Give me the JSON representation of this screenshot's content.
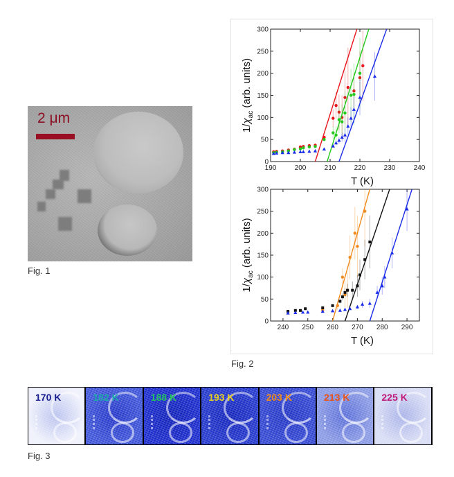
{
  "fig1": {
    "caption": "Fig. 1",
    "scale_label": "2 μm",
    "scale_color": "#9b0f24"
  },
  "fig2": {
    "caption": "Fig. 2",
    "chart_data": [
      {
        "type": "scatter",
        "xlabel": "T (K)",
        "ylabel_main": "1/",
        "ylabel_chi": "χ",
        "ylabel_sub": "ac",
        "ylabel_rest": " (arb. units)",
        "xlim": [
          190,
          240
        ],
        "ylim": [
          0,
          300
        ],
        "xticks": [
          190,
          200,
          210,
          220,
          230,
          240
        ],
        "yticks": [
          0,
          50,
          100,
          150,
          200,
          250,
          300
        ],
        "series": [
          {
            "color": "#e8141c",
            "marker": "circle",
            "points": [
              [
                191,
                22
              ],
              [
                192,
                23
              ],
              [
                194,
                24
              ],
              [
                196,
                26
              ],
              [
                198,
                28
              ],
              [
                200,
                33
              ],
              [
                201,
                34
              ],
              [
                203,
                36
              ],
              [
                205,
                37
              ],
              [
                208,
                55
              ],
              [
                211,
                98
              ],
              [
                212,
                127
              ],
              [
                213,
                112
              ],
              [
                214,
                100
              ],
              [
                215,
                145
              ],
              [
                216,
                168
              ],
              [
                218,
                160
              ],
              [
                220,
                190
              ],
              [
                221,
                217
              ]
            ],
            "errors": [
              0,
              0,
              0,
              0,
              0,
              0,
              0,
              0,
              0,
              0,
              20,
              30,
              40,
              50,
              60,
              90,
              40,
              60,
              80
            ],
            "fit": [
              [
                205,
                0
              ],
              [
                219,
                300
              ]
            ]
          },
          {
            "color": "#22c91a",
            "marker": "circle",
            "points": [
              [
                191,
                20
              ],
              [
                192,
                21
              ],
              [
                194,
                22
              ],
              [
                196,
                24
              ],
              [
                198,
                27
              ],
              [
                200,
                29
              ],
              [
                201,
                31
              ],
              [
                203,
                33
              ],
              [
                205,
                34
              ],
              [
                208,
                50
              ],
              [
                211,
                65
              ],
              [
                212,
                60
              ],
              [
                213,
                95
              ],
              [
                214,
                90
              ],
              [
                215,
                110
              ],
              [
                217,
                150
              ],
              [
                218,
                152
              ],
              [
                220,
                200
              ]
            ],
            "errors": [
              0,
              0,
              0,
              0,
              0,
              0,
              0,
              0,
              0,
              0,
              15,
              20,
              30,
              40,
              50,
              60,
              70,
              80
            ],
            "fit": [
              [
                209,
                0
              ],
              [
                223,
                300
              ]
            ]
          },
          {
            "color": "#1a2ce8",
            "marker": "triangle",
            "points": [
              [
                191,
                18
              ],
              [
                192,
                19
              ],
              [
                194,
                20
              ],
              [
                196,
                20
              ],
              [
                198,
                21
              ],
              [
                200,
                22
              ],
              [
                201,
                22
              ],
              [
                203,
                23
              ],
              [
                205,
                24
              ],
              [
                208,
                28
              ],
              [
                211,
                35
              ],
              [
                212,
                42
              ],
              [
                213,
                48
              ],
              [
                214,
                55
              ],
              [
                215,
                60
              ],
              [
                216,
                80
              ],
              [
                217,
                98
              ],
              [
                218,
                118
              ],
              [
                220,
                145
              ],
              [
                225,
                193
              ]
            ],
            "errors": [
              0,
              0,
              0,
              0,
              0,
              0,
              0,
              0,
              0,
              0,
              0,
              5,
              8,
              10,
              15,
              20,
              25,
              30,
              40,
              55
            ],
            "fit": [
              [
                213,
                0
              ],
              [
                229,
                300
              ]
            ]
          }
        ]
      },
      {
        "type": "scatter",
        "xlabel": "T (K)",
        "ylabel_main": "1/",
        "ylabel_chi": "χ",
        "ylabel_sub": "ac",
        "ylabel_rest": " (arb. units)",
        "xlim": [
          235,
          295
        ],
        "ylim": [
          0,
          300
        ],
        "xticks": [
          240,
          250,
          260,
          270,
          280,
          290
        ],
        "yticks": [
          0,
          50,
          100,
          150,
          200,
          250,
          300
        ],
        "series": [
          {
            "color": "#f28a1b",
            "marker": "circle",
            "points": [
              [
                256,
                25
              ],
              [
                262,
                35
              ],
              [
                264,
                100
              ],
              [
                265,
                60
              ],
              [
                266,
                70
              ],
              [
                267,
                145
              ],
              [
                269,
                200
              ],
              [
                270,
                170
              ],
              [
                273,
                250
              ]
            ],
            "errors": [
              0,
              10,
              20,
              30,
              40,
              50,
              60,
              70,
              80
            ],
            "fit": [
              [
                260,
                0
              ],
              [
                275,
                300
              ]
            ]
          },
          {
            "color": "#111111",
            "marker": "square",
            "points": [
              [
                242,
                22
              ],
              [
                245,
                24
              ],
              [
                247,
                24
              ],
              [
                249,
                28
              ],
              [
                256,
                30
              ],
              [
                260,
                35
              ],
              [
                263,
                45
              ],
              [
                264,
                55
              ],
              [
                265,
                65
              ],
              [
                266,
                70
              ],
              [
                268,
                70
              ],
              [
                270,
                80
              ],
              [
                271,
                105
              ],
              [
                273,
                140
              ],
              [
                275,
                180
              ]
            ],
            "errors": [
              0,
              0,
              0,
              0,
              0,
              0,
              5,
              8,
              10,
              15,
              20,
              25,
              35,
              45,
              60
            ],
            "fit": [
              [
                265,
                0
              ],
              [
                283,
                300
              ]
            ]
          },
          {
            "color": "#1a2ce8",
            "marker": "triangle",
            "points": [
              [
                242,
                18
              ],
              [
                245,
                19
              ],
              [
                248,
                20
              ],
              [
                250,
                20
              ],
              [
                256,
                22
              ],
              [
                260,
                23
              ],
              [
                263,
                24
              ],
              [
                265,
                26
              ],
              [
                267,
                28
              ],
              [
                270,
                32
              ],
              [
                272,
                38
              ],
              [
                275,
                40
              ],
              [
                278,
                65
              ],
              [
                280,
                80
              ],
              [
                281,
                100
              ],
              [
                284,
                155
              ],
              [
                290,
                255
              ]
            ],
            "errors": [
              0,
              0,
              0,
              0,
              0,
              0,
              0,
              0,
              0,
              5,
              8,
              10,
              15,
              20,
              25,
              35,
              50
            ],
            "fit": [
              [
                275,
                0
              ],
              [
                292,
                300
              ]
            ]
          }
        ]
      }
    ]
  },
  "fig3": {
    "caption": "Fig. 3",
    "panels": [
      {
        "label": "170 K",
        "label_color": "#1a2090",
        "bg": "#eef0fb",
        "density": "#b9c2ee"
      },
      {
        "label": "182 K",
        "label_color": "#1aa8a8",
        "bg": "#3f55d8",
        "density": "#2436c8"
      },
      {
        "label": "188 K",
        "label_color": "#22c060",
        "bg": "#1c2ccc",
        "density": "#1020b8"
      },
      {
        "label": "193 K",
        "label_color": "#e8d020",
        "bg": "#2438cc",
        "density": "#1424bc"
      },
      {
        "label": "203 K",
        "label_color": "#f08a1a",
        "bg": "#3448d2",
        "density": "#2234c4"
      },
      {
        "label": "213 K",
        "label_color": "#e8501a",
        "bg": "#8a9ae4",
        "density": "#5a6ed8"
      },
      {
        "label": "225 K",
        "label_color": "#c01a7a",
        "bg": "#d8dcf4",
        "density": "#a8b2e8"
      }
    ]
  }
}
